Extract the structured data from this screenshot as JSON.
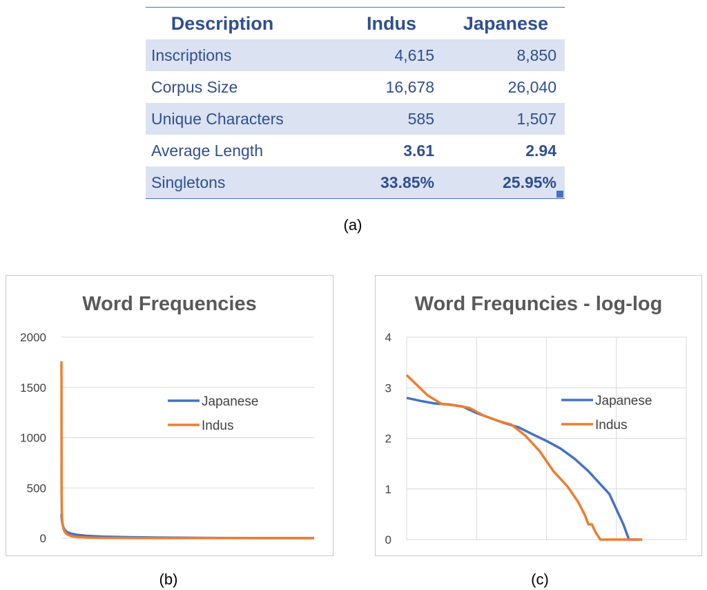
{
  "table": {
    "headers": [
      "Description",
      "Indus",
      "Japanese"
    ],
    "rows": [
      {
        "label": "Inscriptions",
        "indus": "4,615",
        "japanese": "8,850"
      },
      {
        "label": "Corpus Size",
        "indus": "16,678",
        "japanese": "26,040"
      },
      {
        "label": "Unique Characters",
        "indus": "585",
        "japanese": "1,507"
      },
      {
        "label": "Average Length",
        "indus": "3.61",
        "japanese": "2.94"
      },
      {
        "label": "Singletons",
        "indus": "33.85%",
        "japanese": "25.95%"
      }
    ]
  },
  "captions": {
    "a": "(a)",
    "b": "(b)",
    "c": "(c)"
  },
  "colors": {
    "japanese": "#4472c4",
    "indus": "#ed7d31",
    "gridline": "#d9d9d9",
    "table_text": "#2f4f8f",
    "table_band": "#dbe2f2"
  },
  "chart_data": [
    {
      "type": "line",
      "title": "Word Frequencies",
      "xlabel": "",
      "ylabel": "",
      "ylim": [
        0,
        2000
      ],
      "yticks": [
        "0",
        "500",
        "1000",
        "1500",
        "2000"
      ],
      "grid": "horizontal",
      "legend": "right",
      "series": [
        {
          "name": "Japanese",
          "x": [
            1,
            2,
            3,
            5,
            8,
            12,
            20,
            35,
            60,
            100,
            150,
            250,
            400,
            600,
            900,
            1200,
            1507
          ],
          "y": [
            240,
            210,
            190,
            160,
            135,
            110,
            85,
            60,
            45,
            32,
            24,
            16,
            10,
            6,
            3,
            1,
            1
          ]
        },
        {
          "name": "Indus",
          "x": [
            1,
            2,
            3,
            5,
            8,
            12,
            20,
            35,
            60,
            100,
            150,
            250,
            400,
            585,
            900,
            1200,
            1507
          ],
          "y": [
            1760,
            430,
            260,
            190,
            140,
            100,
            65,
            38,
            20,
            10,
            6,
            3,
            2,
            1,
            1,
            1,
            1
          ]
        }
      ]
    },
    {
      "type": "line",
      "title": "Word Frequncies - log-log",
      "xlabel": "",
      "ylabel": "",
      "ylim": [
        0,
        4
      ],
      "xlim": [
        0,
        4
      ],
      "yticks": [
        "0",
        "1",
        "2",
        "3",
        "4"
      ],
      "grid": "both",
      "legend": "right",
      "series": [
        {
          "name": "Japanese",
          "x": [
            0,
            0.2,
            0.4,
            0.6,
            0.8,
            1.0,
            1.2,
            1.4,
            1.6,
            1.8,
            2.0,
            2.2,
            2.4,
            2.6,
            2.8,
            2.9,
            3.0,
            3.05,
            3.1,
            3.18
          ],
          "y": [
            2.8,
            2.74,
            2.69,
            2.67,
            2.63,
            2.5,
            2.4,
            2.3,
            2.22,
            2.08,
            1.95,
            1.8,
            1.6,
            1.35,
            1.05,
            0.9,
            0.6,
            0.45,
            0.3,
            0
          ]
        },
        {
          "name": "Indus",
          "x": [
            0,
            0.15,
            0.3,
            0.5,
            0.7,
            0.9,
            1.1,
            1.3,
            1.5,
            1.7,
            1.9,
            2.1,
            2.3,
            2.45,
            2.55,
            2.6,
            2.65,
            2.7,
            2.77
          ],
          "y": [
            3.25,
            3.05,
            2.85,
            2.68,
            2.65,
            2.6,
            2.45,
            2.35,
            2.27,
            2.05,
            1.75,
            1.35,
            1.05,
            0.75,
            0.48,
            0.3,
            0.3,
            0.15,
            0
          ]
        }
      ]
    }
  ]
}
